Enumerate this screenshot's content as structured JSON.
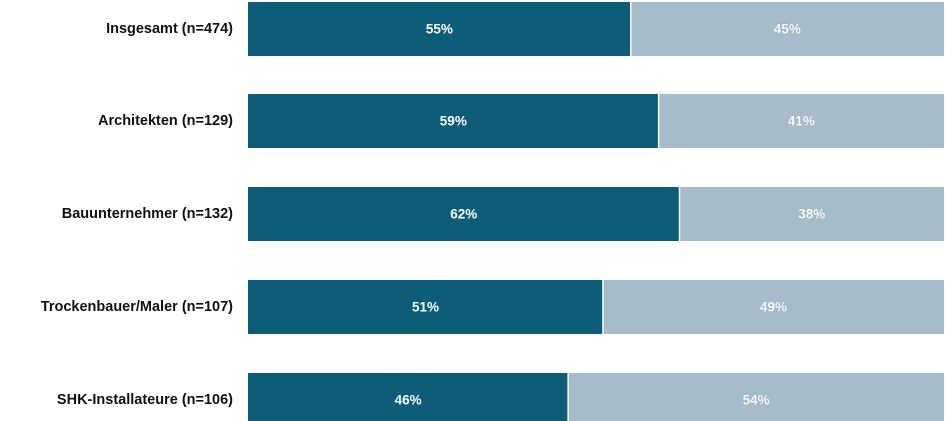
{
  "colors": {
    "series_a": "#0d5c78",
    "series_b": "#a7bcca",
    "separator": "#ffffff"
  },
  "chart_data": {
    "type": "bar",
    "orientation": "horizontal",
    "stacked": true,
    "categories": [
      "Insgesamt (n=474)",
      "Architekten (n=129)",
      "Bauunternehmer (n=132)",
      "Trockenbauer/Maler (n=107)",
      "SHK-Installateure (n=106)"
    ],
    "series": [
      {
        "values": [
          55,
          59,
          62,
          51,
          46
        ],
        "labels": [
          "55%",
          "59%",
          "62%",
          "51%",
          "46%"
        ],
        "color": "#0d5c78"
      },
      {
        "values": [
          45,
          41,
          38,
          49,
          54
        ],
        "labels": [
          "45%",
          "41%",
          "38%",
          "49%",
          "54%"
        ],
        "color": "#a7bcca"
      }
    ],
    "xlim": [
      0,
      100
    ],
    "grid": false,
    "legend": "none",
    "title": "",
    "xlabel": "",
    "ylabel": ""
  }
}
